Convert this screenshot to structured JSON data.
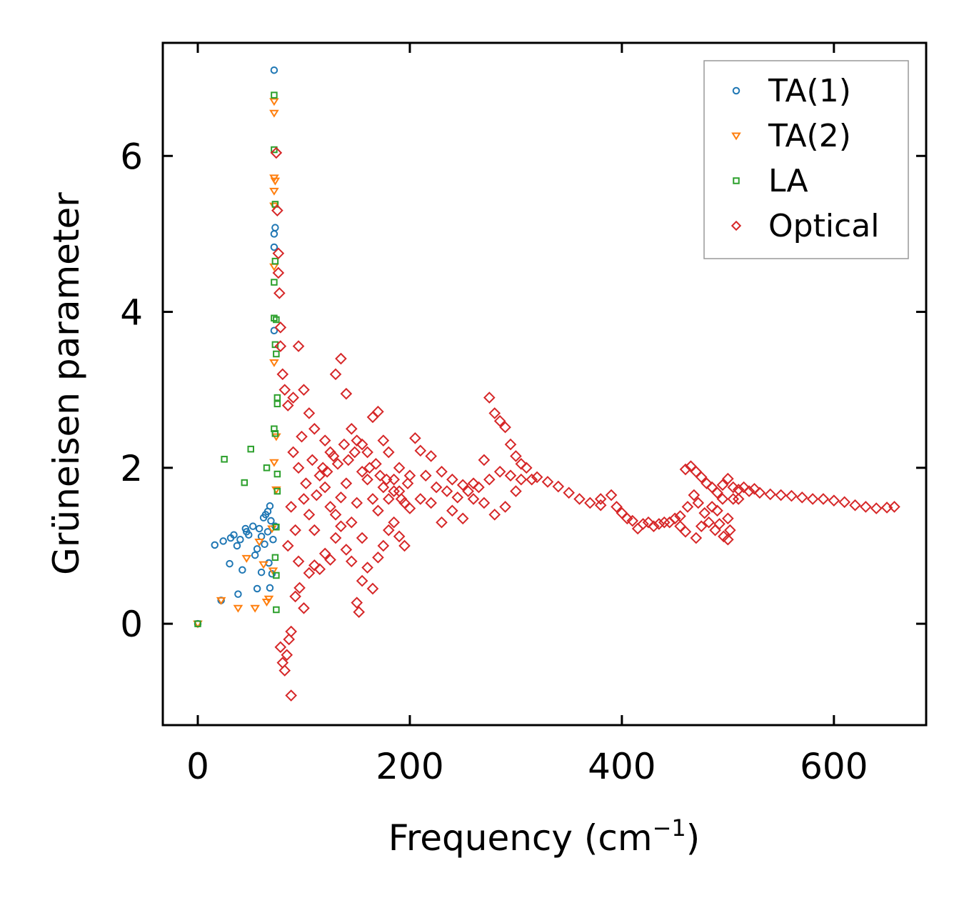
{
  "chart_data": {
    "type": "scatter",
    "title": "",
    "xlabel": "Frequency (cm",
    "xlabel_sup": "−1",
    "xlabel_close": ")",
    "ylabel": "Grüneisen parameter",
    "xlim": [
      -33,
      687
    ],
    "ylim": [
      -1.3,
      7.45
    ],
    "xticks": [
      0,
      200,
      400,
      600
    ],
    "yticks": [
      0,
      2,
      4,
      6
    ],
    "legend_position": "top-right",
    "series": [
      {
        "name": "TA(1)",
        "marker": "circle",
        "color": "#1f77b4",
        "points": [
          [
            0,
            0
          ],
          [
            16,
            1.01
          ],
          [
            22,
            0.3
          ],
          [
            24,
            1.06
          ],
          [
            30,
            0.77
          ],
          [
            31,
            1.1
          ],
          [
            34,
            1.14
          ],
          [
            37,
            1.0
          ],
          [
            38,
            0.38
          ],
          [
            40,
            1.08
          ],
          [
            42,
            0.69
          ],
          [
            45,
            1.22
          ],
          [
            46,
            1.18
          ],
          [
            48,
            1.14
          ],
          [
            52,
            1.25
          ],
          [
            54,
            0.88
          ],
          [
            56,
            0.96
          ],
          [
            56,
            0.45
          ],
          [
            58,
            1.22
          ],
          [
            60,
            0.66
          ],
          [
            60,
            1.12
          ],
          [
            62,
            1.36
          ],
          [
            63,
            1.02
          ],
          [
            64,
            1.4
          ],
          [
            66,
            1.44
          ],
          [
            66,
            1.18
          ],
          [
            67,
            0.78
          ],
          [
            68,
            1.51
          ],
          [
            68,
            0.46
          ],
          [
            69,
            1.32
          ],
          [
            70,
            0.64
          ],
          [
            71,
            1.08
          ],
          [
            72,
            3.76
          ],
          [
            72,
            4.83
          ],
          [
            72,
            5.0
          ],
          [
            72,
            7.1
          ],
          [
            73,
            5.08
          ],
          [
            73,
            1.25
          ]
        ]
      },
      {
        "name": "TA(2)",
        "marker": "triangle-down",
        "color": "#ff7f0e",
        "points": [
          [
            0,
            0
          ],
          [
            22,
            0.3
          ],
          [
            38,
            0.2
          ],
          [
            46,
            0.84
          ],
          [
            54,
            0.2
          ],
          [
            58,
            1.05
          ],
          [
            62,
            0.76
          ],
          [
            65,
            0.28
          ],
          [
            67,
            0.32
          ],
          [
            70,
            1.22
          ],
          [
            71,
            0.68
          ],
          [
            72,
            6.55
          ],
          [
            72,
            6.7
          ],
          [
            72,
            5.72
          ],
          [
            72,
            5.55
          ],
          [
            72,
            5.36
          ],
          [
            72,
            4.58
          ],
          [
            72,
            3.35
          ],
          [
            72,
            2.07
          ],
          [
            73,
            5.68
          ],
          [
            74,
            1.72
          ],
          [
            74,
            2.4
          ]
        ]
      },
      {
        "name": "LA",
        "marker": "square",
        "color": "#2ca02c",
        "points": [
          [
            0,
            0
          ],
          [
            25,
            2.11
          ],
          [
            44,
            1.81
          ],
          [
            50,
            2.24
          ],
          [
            65,
            2.0
          ],
          [
            72,
            6.78
          ],
          [
            72,
            6.08
          ],
          [
            72,
            4.38
          ],
          [
            72,
            3.92
          ],
          [
            72,
            2.5
          ],
          [
            73,
            5.38
          ],
          [
            73,
            4.65
          ],
          [
            73,
            3.58
          ],
          [
            73,
            2.44
          ],
          [
            73,
            0.85
          ],
          [
            74,
            3.9
          ],
          [
            74,
            3.46
          ],
          [
            74,
            1.24
          ],
          [
            74,
            0.62
          ],
          [
            74,
            0.18
          ],
          [
            75,
            2.9
          ],
          [
            75,
            2.82
          ],
          [
            75,
            1.92
          ],
          [
            75,
            1.7
          ]
        ]
      },
      {
        "name": "Optical",
        "marker": "diamond",
        "color": "#d62728",
        "points": [
          [
            74,
            6.04
          ],
          [
            75,
            5.3
          ],
          [
            76,
            4.75
          ],
          [
            76,
            4.5
          ],
          [
            77,
            4.24
          ],
          [
            78,
            3.8
          ],
          [
            78,
            3.56
          ],
          [
            80,
            3.2
          ],
          [
            82,
            3.0
          ],
          [
            85,
            2.8
          ],
          [
            90,
            2.9
          ],
          [
            95,
            3.56
          ],
          [
            100,
            3.0
          ],
          [
            105,
            2.7
          ],
          [
            110,
            2.5
          ],
          [
            120,
            2.35
          ],
          [
            125,
            2.2
          ],
          [
            130,
            3.2
          ],
          [
            135,
            3.4
          ],
          [
            140,
            2.95
          ],
          [
            145,
            2.5
          ],
          [
            150,
            2.35
          ],
          [
            155,
            2.3
          ],
          [
            160,
            2.2
          ],
          [
            165,
            2.65
          ],
          [
            170,
            2.72
          ],
          [
            175,
            2.35
          ],
          [
            180,
            2.2
          ],
          [
            190,
            2.0
          ],
          [
            200,
            1.9
          ],
          [
            205,
            2.38
          ],
          [
            210,
            2.22
          ],
          [
            220,
            2.15
          ],
          [
            230,
            1.95
          ],
          [
            240,
            1.85
          ],
          [
            250,
            1.78
          ],
          [
            260,
            1.8
          ],
          [
            270,
            2.1
          ],
          [
            275,
            2.9
          ],
          [
            280,
            2.7
          ],
          [
            285,
            2.6
          ],
          [
            290,
            2.52
          ],
          [
            295,
            2.3
          ],
          [
            300,
            2.15
          ],
          [
            305,
            2.05
          ],
          [
            310,
            2.0
          ],
          [
            320,
            1.88
          ],
          [
            330,
            1.82
          ],
          [
            340,
            1.76
          ],
          [
            350,
            1.68
          ],
          [
            360,
            1.6
          ],
          [
            370,
            1.55
          ],
          [
            380,
            1.52
          ],
          [
            390,
            1.65
          ],
          [
            400,
            1.42
          ],
          [
            410,
            1.32
          ],
          [
            420,
            1.28
          ],
          [
            430,
            1.25
          ],
          [
            440,
            1.3
          ],
          [
            450,
            1.35
          ],
          [
            455,
            1.38
          ],
          [
            460,
            1.98
          ],
          [
            465,
            2.02
          ],
          [
            470,
            1.95
          ],
          [
            475,
            1.88
          ],
          [
            480,
            1.8
          ],
          [
            485,
            1.75
          ],
          [
            490,
            1.68
          ],
          [
            495,
            1.78
          ],
          [
            500,
            1.86
          ],
          [
            505,
            1.75
          ],
          [
            510,
            1.72
          ],
          [
            520,
            1.7
          ],
          [
            530,
            1.68
          ],
          [
            540,
            1.66
          ],
          [
            550,
            1.65
          ],
          [
            560,
            1.64
          ],
          [
            570,
            1.62
          ],
          [
            580,
            1.6
          ],
          [
            590,
            1.6
          ],
          [
            600,
            1.58
          ],
          [
            610,
            1.56
          ],
          [
            620,
            1.52
          ],
          [
            630,
            1.5
          ],
          [
            640,
            1.48
          ],
          [
            650,
            1.49
          ],
          [
            657,
            1.5
          ],
          [
            78,
            -0.3
          ],
          [
            80,
            -0.5
          ],
          [
            82,
            -0.6
          ],
          [
            84,
            -0.4
          ],
          [
            86,
            -0.2
          ],
          [
            88,
            -0.92
          ],
          [
            88,
            -0.1
          ],
          [
            92,
            0.35
          ],
          [
            96,
            0.46
          ],
          [
            100,
            0.2
          ],
          [
            105,
            0.65
          ],
          [
            110,
            0.75
          ],
          [
            115,
            0.7
          ],
          [
            120,
            0.9
          ],
          [
            125,
            0.82
          ],
          [
            130,
            1.1
          ],
          [
            135,
            1.25
          ],
          [
            140,
            0.95
          ],
          [
            145,
            0.8
          ],
          [
            150,
            0.27
          ],
          [
            152,
            0.15
          ],
          [
            155,
            0.55
          ],
          [
            160,
            0.72
          ],
          [
            165,
            0.45
          ],
          [
            170,
            0.85
          ],
          [
            175,
            1.0
          ],
          [
            180,
            1.2
          ],
          [
            185,
            1.3
          ],
          [
            190,
            1.12
          ],
          [
            195,
            1.0
          ],
          [
            200,
            1.48
          ],
          [
            210,
            1.6
          ],
          [
            220,
            1.55
          ],
          [
            230,
            1.3
          ],
          [
            240,
            1.45
          ],
          [
            250,
            1.35
          ],
          [
            260,
            1.6
          ],
          [
            270,
            1.55
          ],
          [
            280,
            1.4
          ],
          [
            290,
            1.5
          ],
          [
            300,
            1.7
          ],
          [
            95,
            2.0
          ],
          [
            100,
            1.6
          ],
          [
            105,
            1.4
          ],
          [
            110,
            1.2
          ],
          [
            115,
            1.9
          ],
          [
            120,
            1.75
          ],
          [
            125,
            1.5
          ],
          [
            130,
            1.4
          ],
          [
            135,
            1.62
          ],
          [
            140,
            1.8
          ],
          [
            145,
            1.3
          ],
          [
            150,
            1.55
          ],
          [
            155,
            1.1
          ],
          [
            160,
            1.85
          ],
          [
            165,
            1.6
          ],
          [
            170,
            1.45
          ],
          [
            175,
            1.75
          ],
          [
            180,
            1.6
          ],
          [
            185,
            1.85
          ],
          [
            190,
            1.7
          ],
          [
            195,
            1.55
          ],
          [
            85,
            1.0
          ],
          [
            88,
            1.5
          ],
          [
            90,
            2.2
          ],
          [
            92,
            1.2
          ],
          [
            95,
            0.8
          ],
          [
            98,
            2.4
          ],
          [
            102,
            1.8
          ],
          [
            108,
            2.1
          ],
          [
            112,
            1.65
          ],
          [
            118,
            2.0
          ],
          [
            122,
            1.95
          ],
          [
            128,
            2.15
          ],
          [
            132,
            2.05
          ],
          [
            138,
            2.3
          ],
          [
            142,
            2.1
          ],
          [
            148,
            2.2
          ],
          [
            155,
            1.95
          ],
          [
            162,
            2.0
          ],
          [
            168,
            2.05
          ],
          [
            172,
            1.9
          ],
          [
            178,
            1.85
          ],
          [
            185,
            1.7
          ],
          [
            192,
            1.6
          ],
          [
            198,
            1.8
          ],
          [
            215,
            1.9
          ],
          [
            225,
            1.75
          ],
          [
            235,
            1.7
          ],
          [
            245,
            1.62
          ],
          [
            255,
            1.7
          ],
          [
            265,
            1.75
          ],
          [
            275,
            1.85
          ],
          [
            285,
            1.95
          ],
          [
            295,
            1.9
          ],
          [
            305,
            1.85
          ],
          [
            315,
            1.85
          ],
          [
            380,
            1.6
          ],
          [
            395,
            1.5
          ],
          [
            405,
            1.35
          ],
          [
            415,
            1.22
          ],
          [
            425,
            1.3
          ],
          [
            435,
            1.28
          ],
          [
            445,
            1.3
          ],
          [
            455,
            1.25
          ],
          [
            462,
            1.5
          ],
          [
            468,
            1.65
          ],
          [
            472,
            1.55
          ],
          [
            478,
            1.42
          ],
          [
            482,
            1.3
          ],
          [
            488,
            1.2
          ],
          [
            492,
            1.28
          ],
          [
            496,
            1.12
          ],
          [
            500,
            1.08
          ],
          [
            502,
            1.2
          ],
          [
            505,
            1.6
          ],
          [
            495,
            1.6
          ],
          [
            485,
            1.5
          ],
          [
            470,
            1.1
          ],
          [
            460,
            1.18
          ],
          [
            475,
            1.25
          ],
          [
            490,
            1.45
          ],
          [
            500,
            1.35
          ],
          [
            510,
            1.6
          ],
          [
            515,
            1.75
          ],
          [
            525,
            1.73
          ]
        ]
      }
    ]
  }
}
